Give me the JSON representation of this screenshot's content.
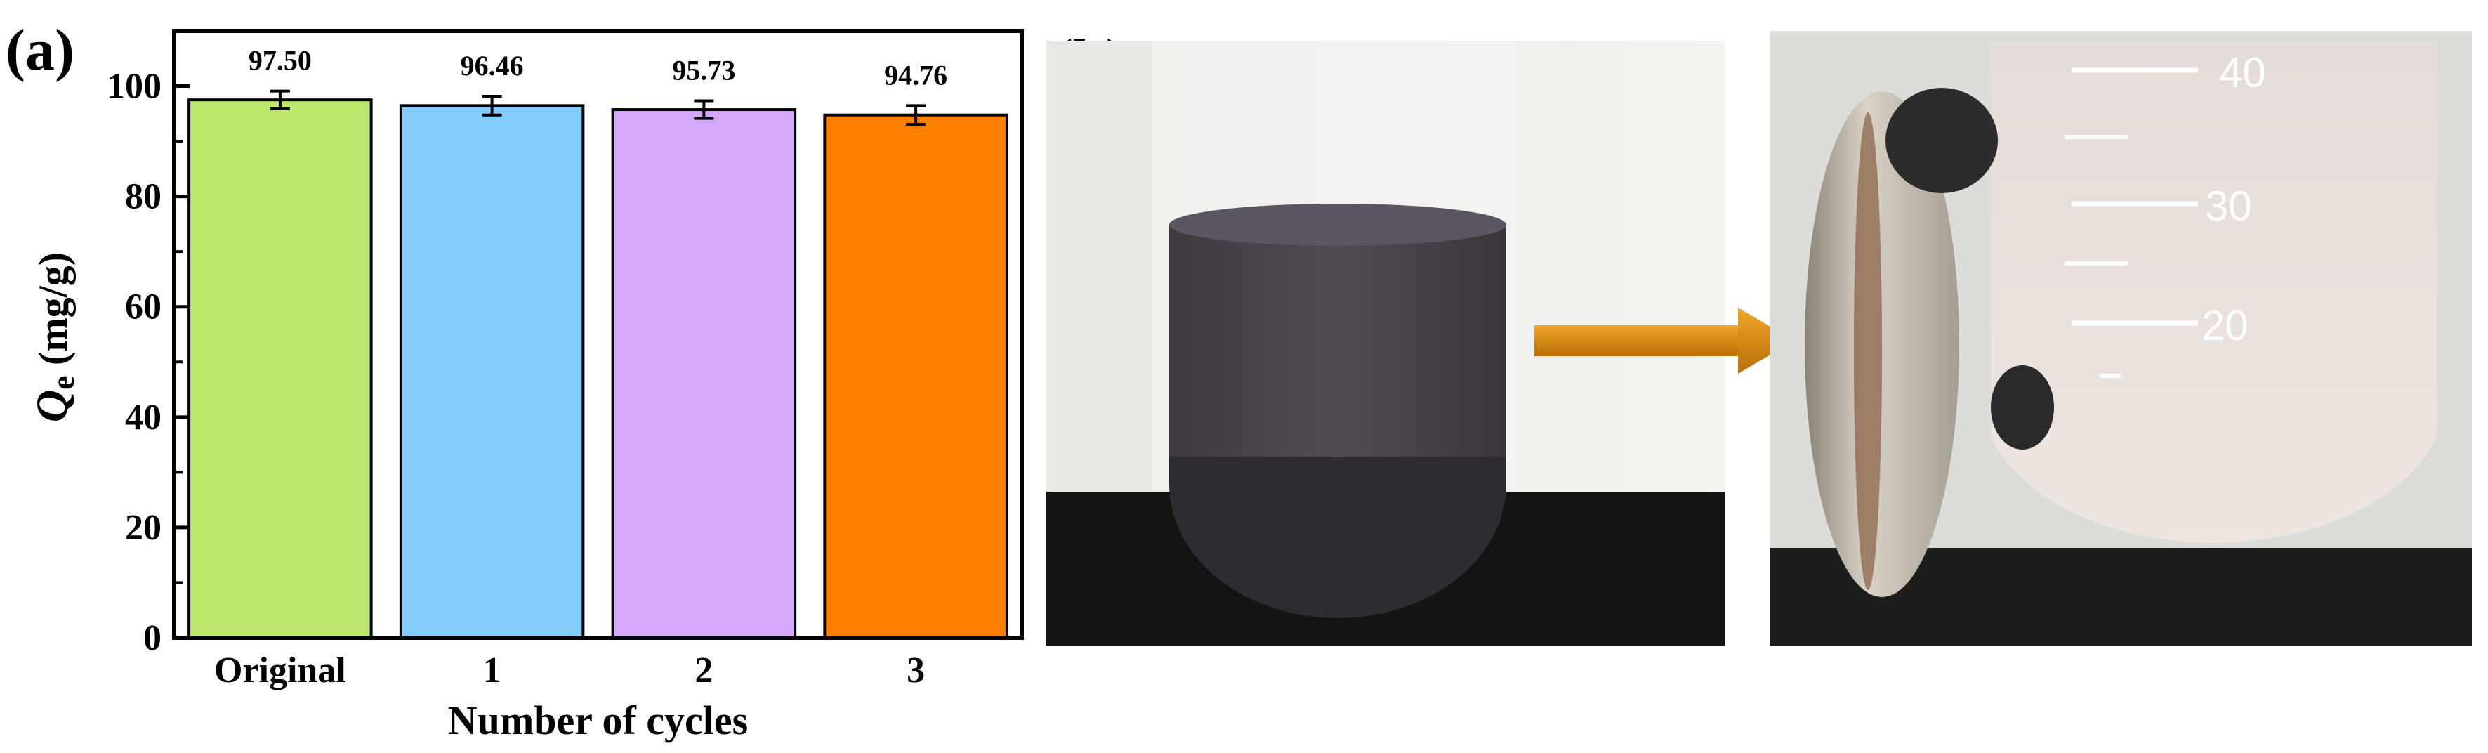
{
  "panels": {
    "a_label": "(a)",
    "b_label": "(b)"
  },
  "chart_data": {
    "type": "bar",
    "categories": [
      "Original",
      "1",
      "2",
      "3"
    ],
    "values": [
      97.5,
      96.46,
      95.73,
      94.76
    ],
    "data_labels": [
      "97.50",
      "96.46",
      "95.73",
      "94.76"
    ],
    "error": [
      1.6,
      1.7,
      1.6,
      1.7
    ],
    "colors": [
      "#bde86d",
      "#82cdfc",
      "#d4a9fc",
      "#ff8000"
    ],
    "ylabel_italic": "Q",
    "ylabel_sub": "e",
    "ylabel_rest": " (mg/g)",
    "xlabel": "Number of cycles",
    "ylim": [
      0,
      110
    ],
    "yticks": [
      0,
      20,
      40,
      60,
      80,
      100
    ],
    "grid": false
  },
  "photos": {
    "left_graduation_labels": [],
    "right_graduation_labels": [
      "40",
      "30",
      "20"
    ]
  },
  "colors": {
    "arrow": "#d68a10",
    "axis": "#000000"
  }
}
